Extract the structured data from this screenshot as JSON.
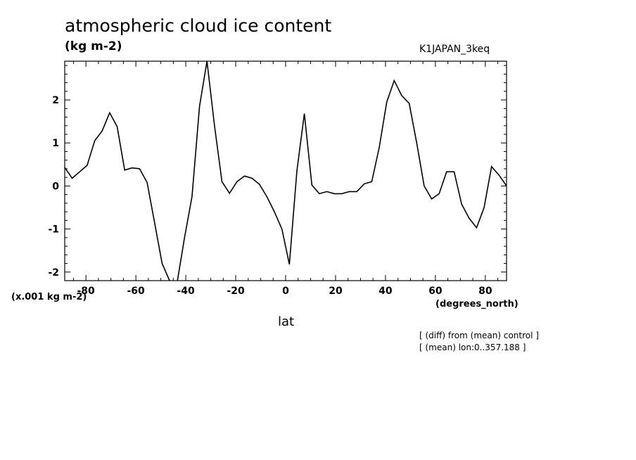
{
  "chart_data": {
    "type": "line",
    "title": "atmospheric cloud ice content",
    "ylabel": "(kg m-2)",
    "experiment": "K1JAPAN_3keq",
    "y_scale_label": "(x.001 kg m-2)",
    "x_units_label": "(degrees_north)",
    "xlabel": "lat",
    "notes": [
      "[ (diff) from (mean) control ]",
      "[ (mean) lon:0..357.188 ]"
    ],
    "xlim": [
      -88.5,
      88.5
    ],
    "ylim": [
      -2.2,
      2.9
    ],
    "xticks": [
      -80,
      -60,
      -40,
      -20,
      0,
      20,
      40,
      60,
      80
    ],
    "xtick_labels": [
      "-80",
      "-60",
      "-40",
      "-20",
      "0",
      "20",
      "40",
      "60",
      "80"
    ],
    "yticks": [
      -2,
      -1,
      0,
      1,
      2
    ],
    "ytick_labels": [
      "-2",
      "-1",
      "0",
      "1",
      "2"
    ],
    "grid": false,
    "series": [
      {
        "x": [
          -88.5,
          -85.5,
          -82.5,
          -79.5,
          -76.5,
          -73.5,
          -70.5,
          -67.5,
          -64.5,
          -61.5,
          -58.5,
          -55.5,
          -52.5,
          -49.5,
          -46.5,
          -43.5,
          -40.5,
          -37.5,
          -34.5,
          -31.5,
          -28.5,
          -25.5,
          -22.5,
          -19.5,
          -16.5,
          -13.5,
          -10.5,
          -7.5,
          -4.5,
          -1.5,
          1.5,
          4.5,
          7.5,
          10.5,
          13.5,
          16.5,
          19.5,
          22.5,
          25.5,
          28.5,
          31.5,
          34.5,
          37.5,
          40.5,
          43.5,
          46.5,
          49.5,
          52.5,
          55.5,
          58.5,
          61.5,
          64.5,
          67.5,
          70.5,
          73.5,
          76.5,
          79.5,
          82.5,
          85.5,
          88.5
        ],
        "values": [
          0.43,
          0.18,
          0.33,
          0.48,
          1.05,
          1.28,
          1.7,
          1.38,
          0.37,
          0.42,
          0.4,
          0.08,
          -0.85,
          -1.8,
          -2.2,
          -2.25,
          -1.2,
          -0.25,
          1.85,
          2.9,
          1.4,
          0.1,
          -0.17,
          0.1,
          0.23,
          0.18,
          0.04,
          -0.25,
          -0.6,
          -1.0,
          -1.82,
          0.35,
          1.68,
          0.02,
          -0.18,
          -0.13,
          -0.18,
          -0.18,
          -0.13,
          -0.13,
          0.05,
          0.1,
          0.9,
          1.95,
          2.45,
          2.1,
          1.92,
          1.0,
          0.0,
          -0.3,
          -0.18,
          0.33,
          0.33,
          -0.42,
          -0.75,
          -0.97,
          -0.5,
          0.45,
          0.25,
          0.0
        ]
      }
    ]
  }
}
